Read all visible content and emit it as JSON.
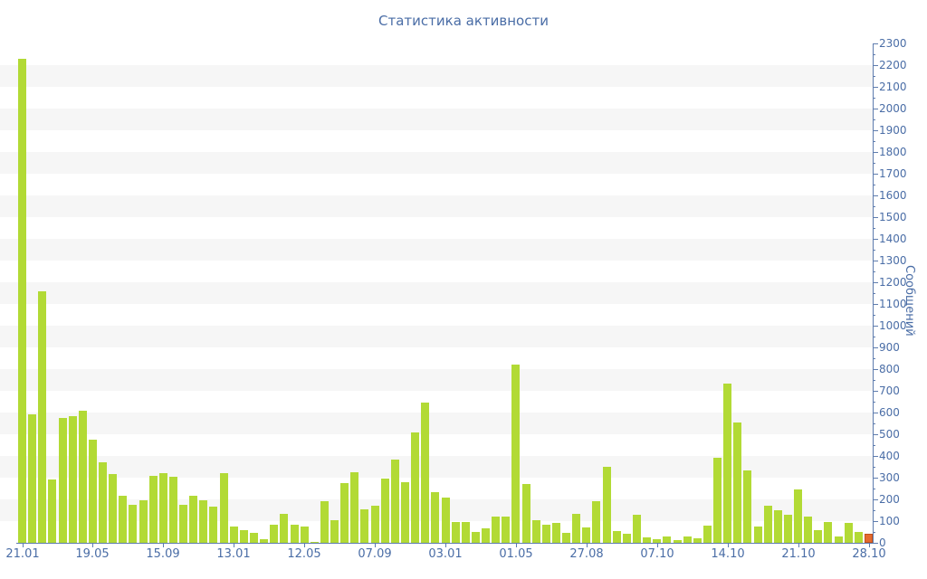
{
  "title": "Статистика активности",
  "chart_data": {
    "type": "bar",
    "title": "Статистика активности",
    "xlabel": "",
    "ylabel": "Сообщений",
    "ylim": [
      0,
      2300
    ],
    "y_tick_step": 100,
    "y_minor_tick_step": 50,
    "grid": "horizontal-stripes",
    "legend": "none",
    "x_tick_labels": [
      "21.01",
      "19.05",
      "15.09",
      "13.01",
      "12.05",
      "07.09",
      "03.01",
      "01.05",
      "27.08",
      "07.10",
      "14.10",
      "21.10",
      "28.10"
    ],
    "x_label_every_n_bars": 7,
    "values": [
      2230,
      590,
      1160,
      290,
      575,
      585,
      610,
      475,
      370,
      315,
      215,
      175,
      195,
      310,
      320,
      305,
      175,
      215,
      195,
      165,
      320,
      75,
      60,
      45,
      18,
      85,
      135,
      85,
      75,
      5,
      190,
      105,
      275,
      325,
      155,
      170,
      295,
      385,
      280,
      510,
      645,
      235,
      210,
      95,
      95,
      50,
      65,
      120,
      120,
      820,
      270,
      105,
      85,
      90,
      45,
      135,
      70,
      190,
      350,
      55,
      40,
      130,
      25,
      18,
      28,
      13,
      30,
      20,
      80,
      390,
      735,
      555,
      335,
      75,
      170,
      150,
      130,
      245,
      120,
      60,
      95,
      30,
      90,
      50,
      40
    ],
    "highlighted_last_bar": true,
    "colors": {
      "bar": "#b2da35",
      "bar_last": "#e56a2e",
      "bar_last_border": "#c2511c",
      "axis_line": "#5e7cae",
      "text": "#4a6da6",
      "stripe": "#f6f6f6",
      "background": "#ffffff"
    }
  }
}
